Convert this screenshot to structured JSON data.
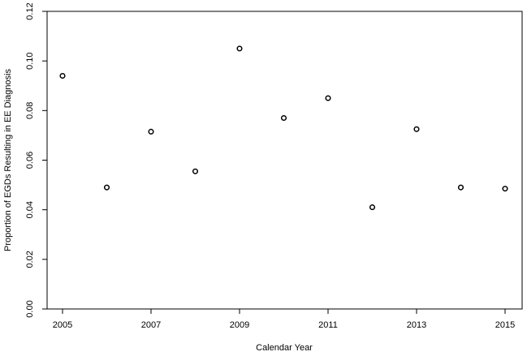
{
  "chart_data": {
    "type": "scatter",
    "title": "",
    "xlabel": "Calendar Year",
    "ylabel": "Proportion of EGDs Resulting in EE Diagnosis",
    "xlim": [
      2005,
      2015
    ],
    "ylim": [
      0,
      0.12
    ],
    "x_ticks": [
      2005,
      2007,
      2009,
      2011,
      2013,
      2015
    ],
    "x_tick_labels": [
      "2005",
      "2007",
      "2009",
      "2011",
      "2013",
      "2015"
    ],
    "y_ticks": [
      0,
      0.02,
      0.04,
      0.06,
      0.08,
      0.1,
      0.12
    ],
    "y_tick_labels": [
      "0.00",
      "0.02",
      "0.04",
      "0.06",
      "0.08",
      "0.10",
      "0.12"
    ],
    "grid": false,
    "legend": null,
    "marker": "open-circle",
    "marker_color": "#000000",
    "series": [
      {
        "x": [
          2005,
          2006,
          2007,
          2008,
          2009,
          2010,
          2011,
          2012,
          2013,
          2014,
          2015
        ],
        "y": [
          0.094,
          0.049,
          0.0715,
          0.0555,
          0.105,
          0.077,
          0.085,
          0.041,
          0.0725,
          0.049,
          0.0485
        ]
      }
    ]
  }
}
